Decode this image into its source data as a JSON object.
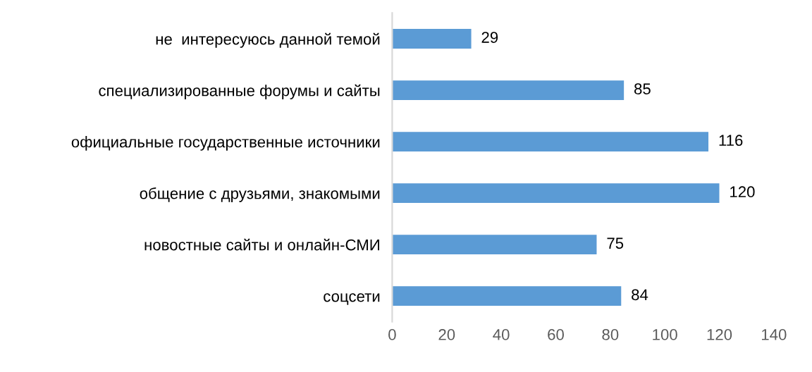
{
  "chart_data": {
    "type": "bar",
    "orientation": "horizontal",
    "categories": [
      "не  интересуюсь данной темой",
      "специализированные форумы и сайты",
      "официальные государственные источники",
      "общение с друзьями, знакомыми",
      "новостные сайты и онлайн-СМИ",
      "соцсети"
    ],
    "values": [
      29,
      85,
      116,
      120,
      75,
      84
    ],
    "color": "#5b9bd5",
    "xlim": [
      0,
      140
    ],
    "xticks": [
      0,
      20,
      40,
      60,
      80,
      100,
      120,
      140
    ],
    "data_labels": true,
    "grid": false,
    "legend": false
  }
}
